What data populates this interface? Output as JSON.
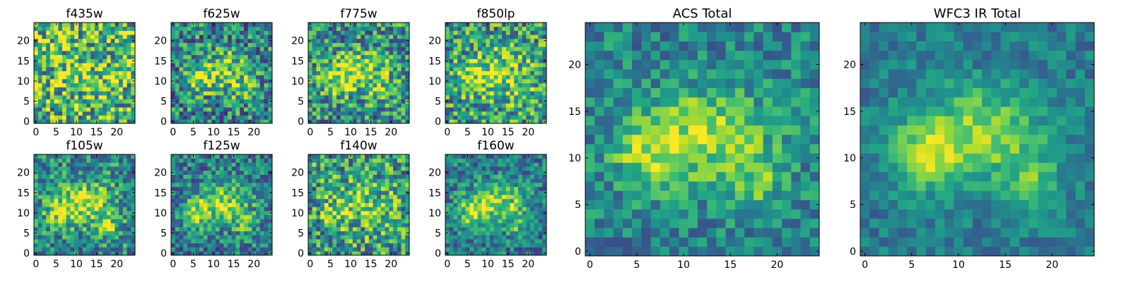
{
  "figure": {
    "description": "Grid of 2D image panels (viridis colormap) showing pixel intensity maps per HST filter plus ACS and WFC3 IR totals",
    "colormap": "viridis"
  },
  "chart_data": [
    {
      "type": "heatmap",
      "title": "f435w",
      "grid_size": 25,
      "xticks": [
        0,
        5,
        10,
        15,
        20
      ],
      "yticks": [
        0,
        5,
        10,
        15,
        20
      ],
      "seed": 11,
      "source_strength": 0.15,
      "noise_level": 0.85,
      "background": 0.66
    },
    {
      "type": "heatmap",
      "title": "f625w",
      "grid_size": 25,
      "xticks": [
        0,
        5,
        10,
        15,
        20
      ],
      "yticks": [
        0,
        5,
        10,
        15,
        20
      ],
      "seed": 23,
      "source_strength": 0.55,
      "noise_level": 0.7,
      "background": 0.45
    },
    {
      "type": "heatmap",
      "title": "f775w",
      "grid_size": 25,
      "xticks": [
        0,
        5,
        10,
        15,
        20
      ],
      "yticks": [
        0,
        5,
        10,
        15,
        20
      ],
      "seed": 37,
      "source_strength": 0.55,
      "noise_level": 0.7,
      "background": 0.5
    },
    {
      "type": "heatmap",
      "title": "f850lp",
      "grid_size": 25,
      "xticks": [
        0,
        5,
        10,
        15,
        20
      ],
      "yticks": [
        0,
        5,
        10,
        15,
        20
      ],
      "seed": 41,
      "source_strength": 0.5,
      "noise_level": 0.72,
      "background": 0.55
    },
    {
      "type": "heatmap",
      "title": "f105w",
      "grid_size": 25,
      "xticks": [
        0,
        5,
        10,
        15,
        20
      ],
      "yticks": [
        0,
        5,
        10,
        15,
        20
      ],
      "seed": 53,
      "source_strength": 0.6,
      "noise_level": 0.6,
      "background": 0.48
    },
    {
      "type": "heatmap",
      "title": "f125w",
      "grid_size": 25,
      "xticks": [
        0,
        5,
        10,
        15,
        20
      ],
      "yticks": [
        0,
        5,
        10,
        15,
        20
      ],
      "seed": 67,
      "source_strength": 0.6,
      "noise_level": 0.55,
      "background": 0.42
    },
    {
      "type": "heatmap",
      "title": "f140w",
      "grid_size": 25,
      "xticks": [
        0,
        5,
        10,
        15,
        20
      ],
      "yticks": [
        0,
        5,
        10,
        15,
        20
      ],
      "seed": 79,
      "source_strength": 0.4,
      "noise_level": 0.75,
      "background": 0.55
    },
    {
      "type": "heatmap",
      "title": "f160w",
      "grid_size": 25,
      "xticks": [
        0,
        5,
        10,
        15,
        20
      ],
      "yticks": [
        0,
        5,
        10,
        15,
        20
      ],
      "seed": 83,
      "source_strength": 0.65,
      "noise_level": 0.5,
      "background": 0.42
    },
    {
      "type": "heatmap",
      "title": "ACS Total",
      "grid_size": 25,
      "xticks": [
        0,
        5,
        10,
        15,
        20
      ],
      "yticks": [
        0,
        5,
        10,
        15,
        20
      ],
      "seed": 97,
      "source_strength": 0.6,
      "noise_level": 0.42,
      "background": 0.45
    },
    {
      "type": "heatmap",
      "title": "WFC3 IR Total",
      "grid_size": 25,
      "xticks": [
        0,
        5,
        10,
        15,
        20
      ],
      "yticks": [
        0,
        5,
        10,
        15,
        20
      ],
      "seed": 101,
      "source_strength": 0.62,
      "noise_level": 0.3,
      "background": 0.42
    }
  ]
}
